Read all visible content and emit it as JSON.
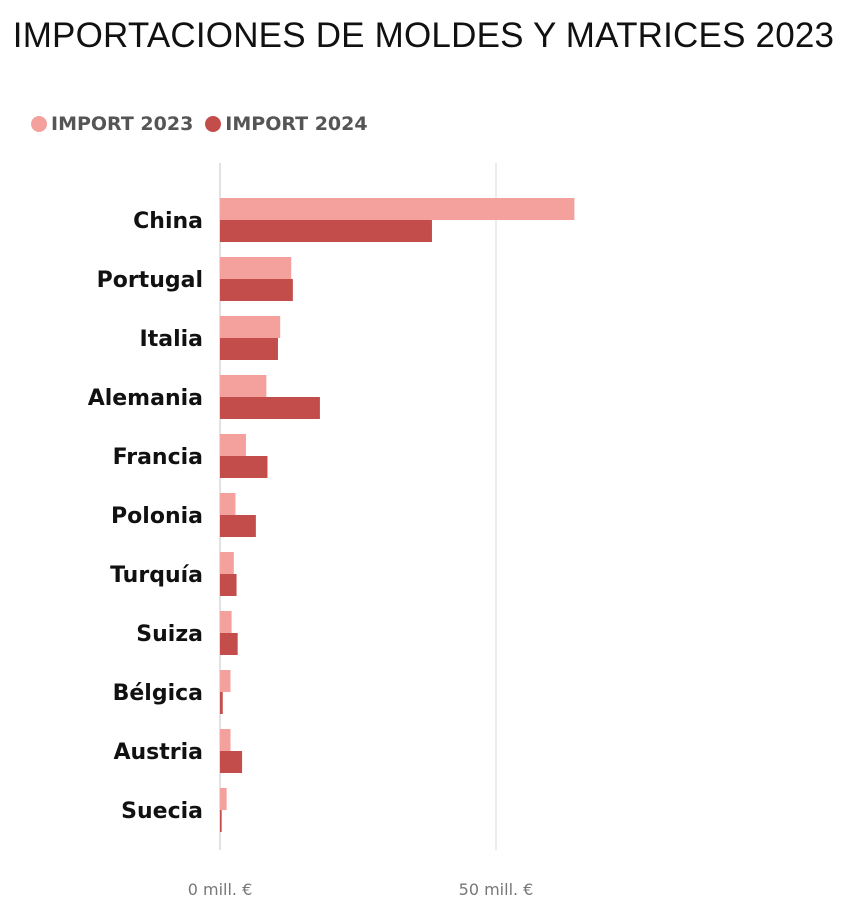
{
  "chart_data": {
    "type": "bar",
    "orientation": "horizontal",
    "title": "IMPORTACIONES DE MOLDES Y MATRICES 2023",
    "categories": [
      "China",
      "Portugal",
      "Italia",
      "Alemania",
      "Francia",
      "Polonia",
      "Turquía",
      "Suiza",
      "Bélgica",
      "Austria",
      "Suecia"
    ],
    "series": [
      {
        "name": "IMPORT 2023",
        "color": "#f4a09d",
        "values": [
          64.2,
          12.9,
          10.9,
          8.4,
          4.7,
          2.8,
          2.5,
          2.1,
          1.9,
          1.9,
          1.2
        ]
      },
      {
        "name": "IMPORT 2024",
        "color": "#c24d4b",
        "values": [
          38.4,
          13.2,
          10.5,
          18.1,
          8.6,
          6.5,
          3.0,
          3.2,
          0.5,
          4.0,
          0.3
        ]
      }
    ],
    "xticks": [
      {
        "value": 0,
        "label": "0 mill. €"
      },
      {
        "value": 50,
        "label": "50 mill. €"
      }
    ],
    "xlim": [
      0,
      100
    ],
    "legend_position": "top-left",
    "grid": true
  }
}
